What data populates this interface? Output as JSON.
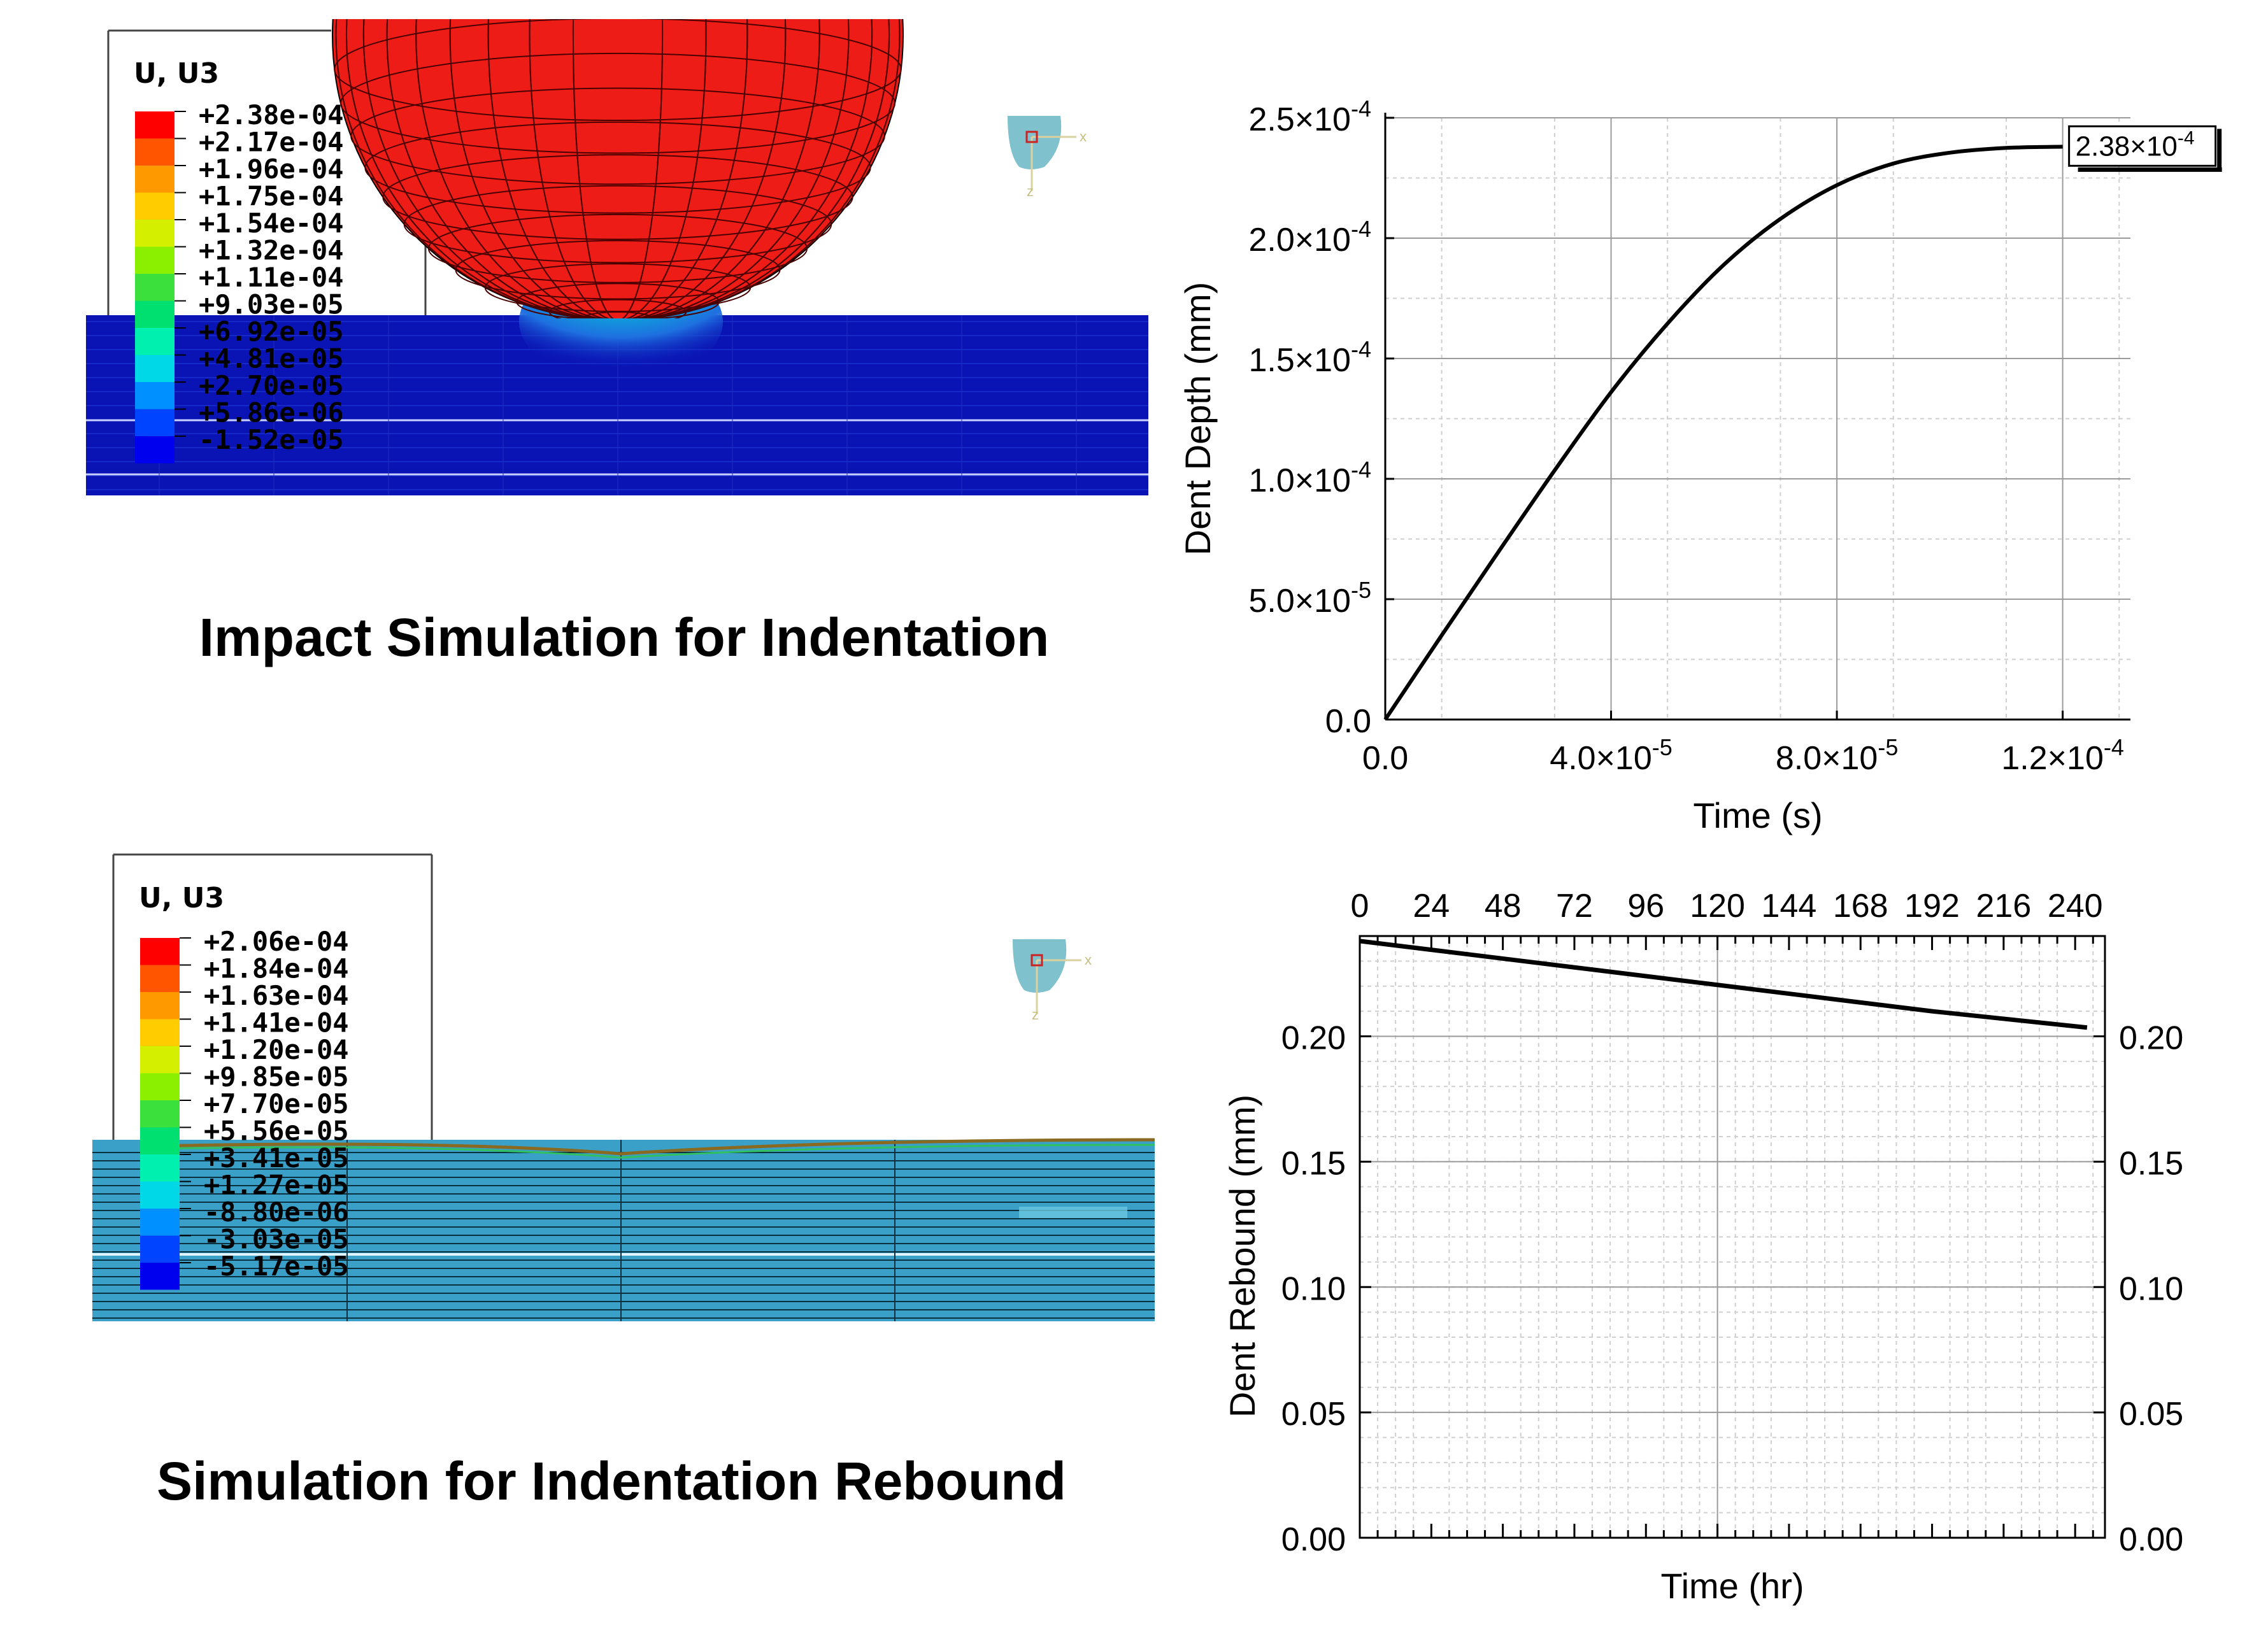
{
  "sim_top": {
    "legend_title": "U, U3",
    "legend_labels": [
      "+2.38e-04",
      "+2.17e-04",
      "+1.96e-04",
      "+1.75e-04",
      "+1.54e-04",
      "+1.32e-04",
      "+1.11e-04",
      "+9.03e-05",
      "+6.92e-05",
      "+4.81e-05",
      "+2.70e-05",
      "+5.86e-06",
      "-1.52e-05"
    ],
    "legend_colors": [
      "#ff0000",
      "#ff5400",
      "#ff9900",
      "#ffcc00",
      "#d4f000",
      "#8af000",
      "#3ce03c",
      "#00e070",
      "#00f0b0",
      "#00d8e8",
      "#0090ff",
      "#0044ff",
      "#0000ee"
    ],
    "title": "Impact Simulation for Indentation"
  },
  "sim_bottom": {
    "legend_title": "U, U3",
    "legend_labels": [
      "+2.06e-04",
      "+1.84e-04",
      "+1.63e-04",
      "+1.41e-04",
      "+1.20e-04",
      "+9.85e-05",
      "+7.70e-05",
      "+5.56e-05",
      "+3.41e-05",
      "+1.27e-05",
      "-8.80e-06",
      "-3.03e-05",
      "-5.17e-05"
    ],
    "legend_colors": [
      "#ff0000",
      "#ff5400",
      "#ff9900",
      "#ffcc00",
      "#d4f000",
      "#8af000",
      "#3ce03c",
      "#00e070",
      "#00f0b0",
      "#00d8e8",
      "#0090ff",
      "#0044ff",
      "#0000ee"
    ],
    "title": "Simulation for Indentation Rebound"
  },
  "colors": {
    "sphere": "#ee1c16",
    "plate_top": "#0a14b4",
    "plate_bottom": "#3aa0c8",
    "triad": "#7fc1cc"
  },
  "chart_data": [
    {
      "type": "line",
      "title": "",
      "xlabel": "Time (s)",
      "ylabel": "Dent Depth (mm)",
      "xlim": [
        0,
        0.000132
      ],
      "ylim": [
        0,
        0.00025
      ],
      "x_ticks": [
        0,
        4e-05,
        8e-05,
        0.00012
      ],
      "x_tick_mantissa": [
        "0.0",
        "4.0×10",
        "8.0×10",
        "1.2×10"
      ],
      "x_tick_exp": [
        "",
        "-5",
        "-5",
        "-4"
      ],
      "y_ticks": [
        0,
        5e-05,
        0.0001,
        0.00015,
        0.0002,
        0.00025
      ],
      "y_tick_mantissa": [
        "0.0",
        "5.0×10",
        "1.0×10",
        "1.5×10",
        "2.0×10",
        "2.5×10"
      ],
      "y_tick_exp": [
        "",
        "-5",
        "-4",
        "-4",
        "-4",
        "-4"
      ],
      "series": [
        {
          "name": "Dent depth",
          "x": [
            0,
            1e-05,
            2e-05,
            3e-05,
            4e-05,
            5e-05,
            6e-05,
            7e-05,
            8e-05,
            9e-05,
            0.0001,
            0.00011,
            0.00012
          ],
          "y": [
            0,
            3.5e-05,
            6.95e-05,
            0.0001035,
            0.000136,
            0.0001645,
            0.000189,
            0.000208,
            0.000222,
            0.000231,
            0.0002355,
            0.0002375,
            0.000238
          ]
        }
      ],
      "annotation": {
        "mantissa": "2.38×10",
        "exp": "-4",
        "x": 0.00012,
        "y": 0.000238
      }
    },
    {
      "type": "line",
      "title": "",
      "xlabel": "Time (hr)",
      "ylabel": "Dent Rebound (mm)",
      "xlim": [
        0,
        250
      ],
      "ylim": [
        0,
        0.24
      ],
      "x_ticks": [
        0,
        24,
        48,
        72,
        96,
        120,
        144,
        168,
        192,
        216,
        240
      ],
      "x_tick_labels": [
        "0",
        "24",
        "48",
        "72",
        "96",
        "120",
        "144",
        "168",
        "192",
        "216",
        "240"
      ],
      "y_ticks": [
        0,
        0.05,
        0.1,
        0.15,
        0.2
      ],
      "y_tick_labels": [
        "0.00",
        "0.05",
        "0.10",
        "0.15",
        "0.20"
      ],
      "series": [
        {
          "name": "Dent rebound",
          "x": [
            0,
            24,
            48,
            72,
            96,
            120,
            144,
            168,
            192,
            216,
            244
          ],
          "y": [
            0.238,
            0.2345,
            0.231,
            0.2275,
            0.224,
            0.2205,
            0.217,
            0.2135,
            0.21,
            0.207,
            0.2035
          ]
        }
      ]
    }
  ]
}
